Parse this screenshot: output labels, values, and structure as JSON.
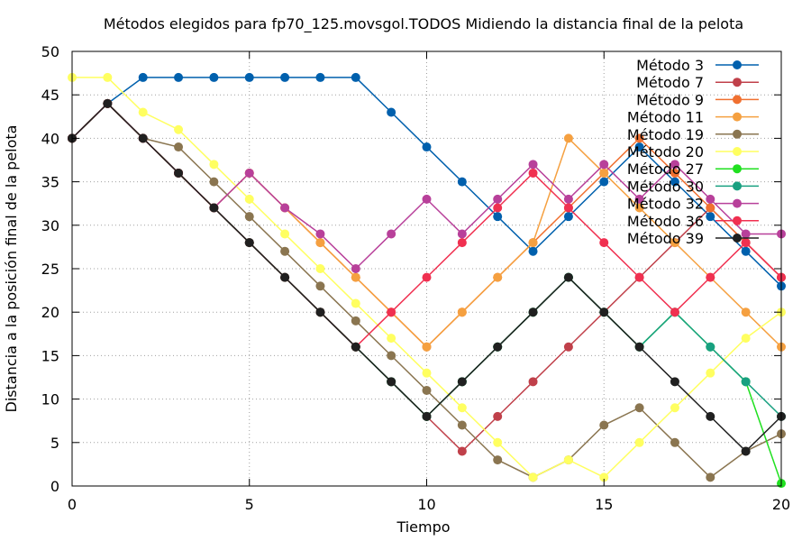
{
  "chart_data": {
    "type": "line",
    "title": "Métodos elegidos para fp70_125.movsgol.TODOS Midiendo la distancia final de la pelota",
    "xlabel": "Tiempo",
    "ylabel": "Distancia a la posición final de la pelota",
    "xlim": [
      0,
      20
    ],
    "ylim": [
      0,
      50
    ],
    "x_ticks": [
      "0",
      "5",
      "10",
      "15",
      "20"
    ],
    "y_ticks": [
      "0",
      "5",
      "10",
      "15",
      "20",
      "25",
      "30",
      "35",
      "40",
      "45",
      "50"
    ],
    "grid": true,
    "legend_position": "top-right",
    "x": [
      0,
      1,
      2,
      3,
      4,
      5,
      6,
      7,
      8,
      9,
      10,
      11,
      12,
      13,
      14,
      15,
      16,
      17,
      18,
      19,
      20
    ],
    "series": [
      {
        "name": "Método 3",
        "color": "#0060ad",
        "values": [
          40,
          44,
          47,
          47,
          47,
          47,
          47,
          47,
          47,
          43,
          39,
          35,
          31,
          27,
          31,
          35,
          39,
          35,
          31,
          27,
          23
        ]
      },
      {
        "name": "Método 7",
        "color": "#c0404a",
        "values": [
          40,
          44,
          40,
          36,
          32,
          28,
          24,
          20,
          16,
          12,
          8,
          4,
          8,
          12,
          16,
          20,
          24,
          28,
          32,
          28,
          24
        ]
      },
      {
        "name": "Método 9",
        "color": "#f07030",
        "values": [
          40,
          44,
          40,
          36,
          32,
          36,
          32,
          28,
          24,
          20,
          16,
          20,
          24,
          28,
          32,
          36,
          40,
          36,
          32,
          28,
          24
        ]
      },
      {
        "name": "Método 11",
        "color": "#f5a040",
        "values": [
          40,
          44,
          40,
          36,
          32,
          36,
          32,
          28,
          24,
          20,
          16,
          20,
          24,
          28,
          40,
          36,
          32,
          28,
          24,
          20,
          16
        ]
      },
      {
        "name": "Método 19",
        "color": "#8a7550",
        "values": [
          40,
          44,
          40,
          39,
          35,
          31,
          27,
          23,
          19,
          15,
          11,
          7,
          3,
          1,
          3,
          7,
          9,
          5,
          1,
          4,
          6
        ]
      },
      {
        "name": "Método 20",
        "color": "#ffff60",
        "values": [
          47,
          47,
          43,
          41,
          37,
          33,
          29,
          25,
          21,
          17,
          13,
          9,
          5,
          1,
          3,
          1,
          5,
          9,
          13,
          17,
          20
        ]
      },
      {
        "name": "Método 27",
        "color": "#20e020",
        "values": [
          40,
          44,
          40,
          36,
          32,
          28,
          24,
          20,
          16,
          12,
          8,
          12,
          16,
          20,
          24,
          20,
          16,
          20,
          16,
          12,
          0.3
        ]
      },
      {
        "name": "Método 30",
        "color": "#18a080",
        "values": [
          40,
          44,
          40,
          36,
          32,
          28,
          24,
          20,
          16,
          12,
          8,
          12,
          16,
          20,
          24,
          20,
          16,
          20,
          16,
          12,
          8
        ]
      },
      {
        "name": "Método 32",
        "color": "#b8409a",
        "values": [
          40,
          44,
          40,
          36,
          32,
          36,
          32,
          29,
          25,
          29,
          33,
          29,
          33,
          37,
          33,
          37,
          33,
          37,
          33,
          29,
          29
        ]
      },
      {
        "name": "Método 36",
        "color": "#f03050",
        "values": [
          40,
          44,
          40,
          36,
          32,
          28,
          24,
          20,
          16,
          20,
          24,
          28,
          32,
          36,
          32,
          28,
          24,
          20,
          24,
          28,
          24
        ]
      },
      {
        "name": "Método 39",
        "color": "#202020",
        "values": [
          40,
          44,
          40,
          36,
          32,
          28,
          24,
          20,
          16,
          12,
          8,
          12,
          16,
          20,
          24,
          20,
          16,
          12,
          8,
          4,
          8
        ]
      }
    ]
  }
}
